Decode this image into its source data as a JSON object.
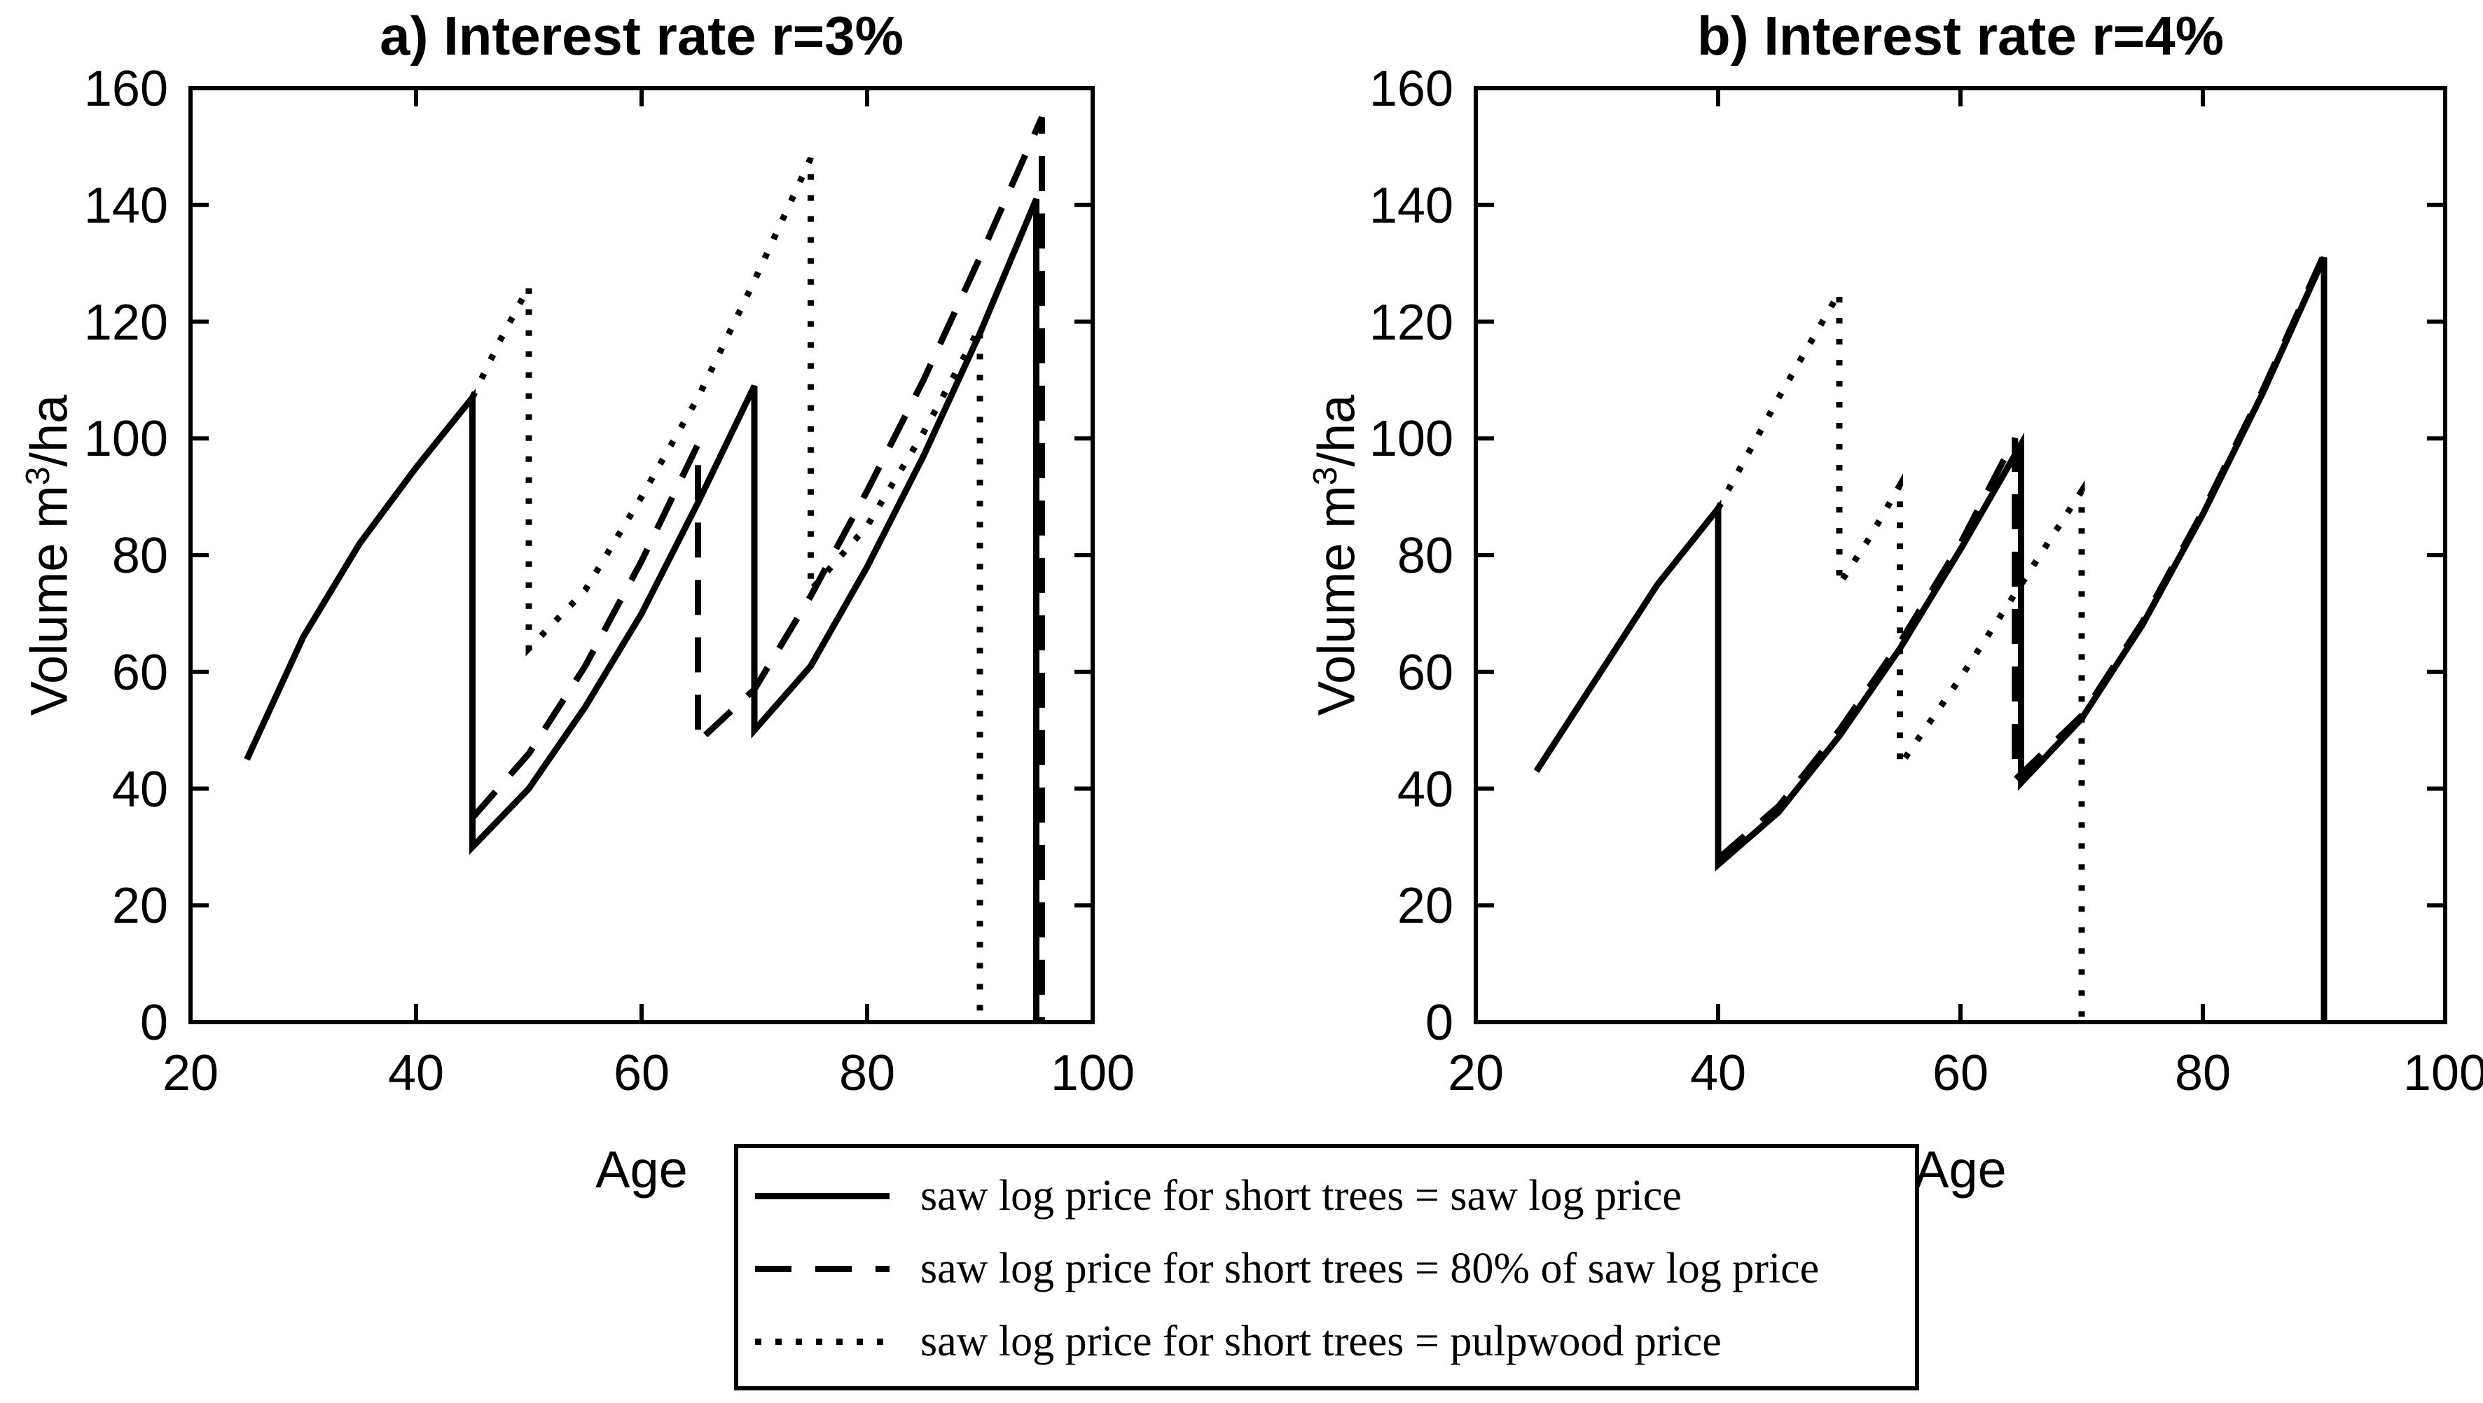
{
  "chart_data": [
    {
      "type": "line",
      "panel": "a",
      "title": "a) Interest rate r=3%",
      "xlabel": "Age",
      "ylabel": "Volume m3/ha",
      "ylabel_prefix": "Volume m",
      "ylabel_sup": "3",
      "ylabel_suffix": "/ha",
      "xlim": [
        20,
        100
      ],
      "ylim": [
        0,
        160
      ],
      "x_ticks": [
        20,
        40,
        60,
        80,
        100
      ],
      "y_ticks": [
        0,
        20,
        40,
        60,
        80,
        100,
        120,
        140,
        160
      ],
      "grid": false,
      "series": [
        {
          "name": "saw log price for short trees = saw log price",
          "style": "solid",
          "points": [
            [
              25,
              45
            ],
            [
              30,
              66
            ],
            [
              35,
              82
            ],
            [
              40,
              95
            ],
            [
              45,
              107
            ],
            [
              45,
              30
            ],
            [
              50,
              40
            ],
            [
              55,
              54
            ],
            [
              60,
              70
            ],
            [
              65,
              89
            ],
            [
              70,
              109
            ],
            [
              70,
              50
            ],
            [
              75,
              61
            ],
            [
              80,
              78
            ],
            [
              85,
              97
            ],
            [
              90,
              118
            ],
            [
              95,
              141
            ],
            [
              95,
              0
            ]
          ]
        },
        {
          "name": "saw log price for short trees = 80% of saw log price",
          "style": "dashed",
          "points": [
            [
              45,
              35
            ],
            [
              50,
              46
            ],
            [
              55,
              61
            ],
            [
              60,
              79
            ],
            [
              65,
              99
            ],
            [
              65,
              48
            ],
            [
              70,
              57
            ],
            [
              75,
              73
            ],
            [
              80,
              91
            ],
            [
              85,
              110
            ],
            [
              90,
              131
            ],
            [
              95.5,
              155
            ],
            [
              95.5,
              0
            ]
          ]
        },
        {
          "name": "saw log price for short trees = pulpwood price",
          "style": "dotted",
          "points": [
            [
              45,
              107
            ],
            [
              47.5,
              117
            ],
            [
              50,
              126
            ],
            [
              50,
              64
            ],
            [
              55,
              74
            ],
            [
              60,
              90
            ],
            [
              65,
              107
            ],
            [
              70,
              127
            ],
            [
              75,
              148
            ],
            [
              75,
              74
            ],
            [
              80,
              85
            ],
            [
              85,
              101
            ],
            [
              90,
              119
            ],
            [
              90,
              0
            ]
          ]
        }
      ]
    },
    {
      "type": "line",
      "panel": "b",
      "title": "b) Interest rate r=4%",
      "xlabel": "Age",
      "ylabel": "Volume m3/ha",
      "ylabel_prefix": "Volume m",
      "ylabel_sup": "3",
      "ylabel_suffix": "/ha",
      "xlim": [
        20,
        100
      ],
      "ylim": [
        0,
        160
      ],
      "x_ticks": [
        20,
        40,
        60,
        80,
        100
      ],
      "y_ticks": [
        0,
        20,
        40,
        60,
        80,
        100,
        120,
        140,
        160
      ],
      "grid": false,
      "series": [
        {
          "name": "saw log price for short trees = saw log price",
          "style": "solid",
          "points": [
            [
              25,
              43
            ],
            [
              30,
              59
            ],
            [
              35,
              75
            ],
            [
              40,
              88
            ],
            [
              40,
              27
            ],
            [
              45,
              36
            ],
            [
              50,
              49
            ],
            [
              55,
              64
            ],
            [
              60,
              81
            ],
            [
              65,
              99
            ],
            [
              65,
              41
            ],
            [
              70,
              52
            ],
            [
              75,
              68
            ],
            [
              80,
              87
            ],
            [
              85,
              108
            ],
            [
              90,
              131
            ],
            [
              90,
              0
            ]
          ]
        },
        {
          "name": "saw log price for short trees = 80% of saw log price",
          "style": "dashed",
          "points": [
            [
              40,
              28
            ],
            [
              45,
              37
            ],
            [
              50,
              50
            ],
            [
              55,
              65
            ],
            [
              60,
              82
            ],
            [
              64.5,
              100
            ],
            [
              64.5,
              41.5
            ],
            [
              70,
              52.5
            ],
            [
              75,
              68.5
            ],
            [
              80,
              87.5
            ],
            [
              85,
              108.5
            ],
            [
              90,
              131.5
            ],
            [
              90,
              0
            ]
          ]
        },
        {
          "name": "saw log price for short trees = pulpwood price",
          "style": "dotted",
          "points": [
            [
              40,
              88
            ],
            [
              45,
              107
            ],
            [
              50,
              125
            ],
            [
              50,
              75
            ],
            [
              52.5,
              83
            ],
            [
              55,
              92
            ],
            [
              55,
              44
            ],
            [
              60,
              59
            ],
            [
              65,
              75
            ],
            [
              70,
              91
            ],
            [
              70,
              0
            ]
          ]
        }
      ]
    }
  ],
  "legend": {
    "items": [
      {
        "style": "solid",
        "label": "saw log price for short trees = saw log price"
      },
      {
        "style": "dashed",
        "label": "saw log price for short trees = 80% of saw log price"
      },
      {
        "style": "dotted",
        "label": "saw log price for short trees = pulpwood price"
      }
    ]
  },
  "colors": {
    "line": "#000000",
    "background": "#ffffff"
  }
}
